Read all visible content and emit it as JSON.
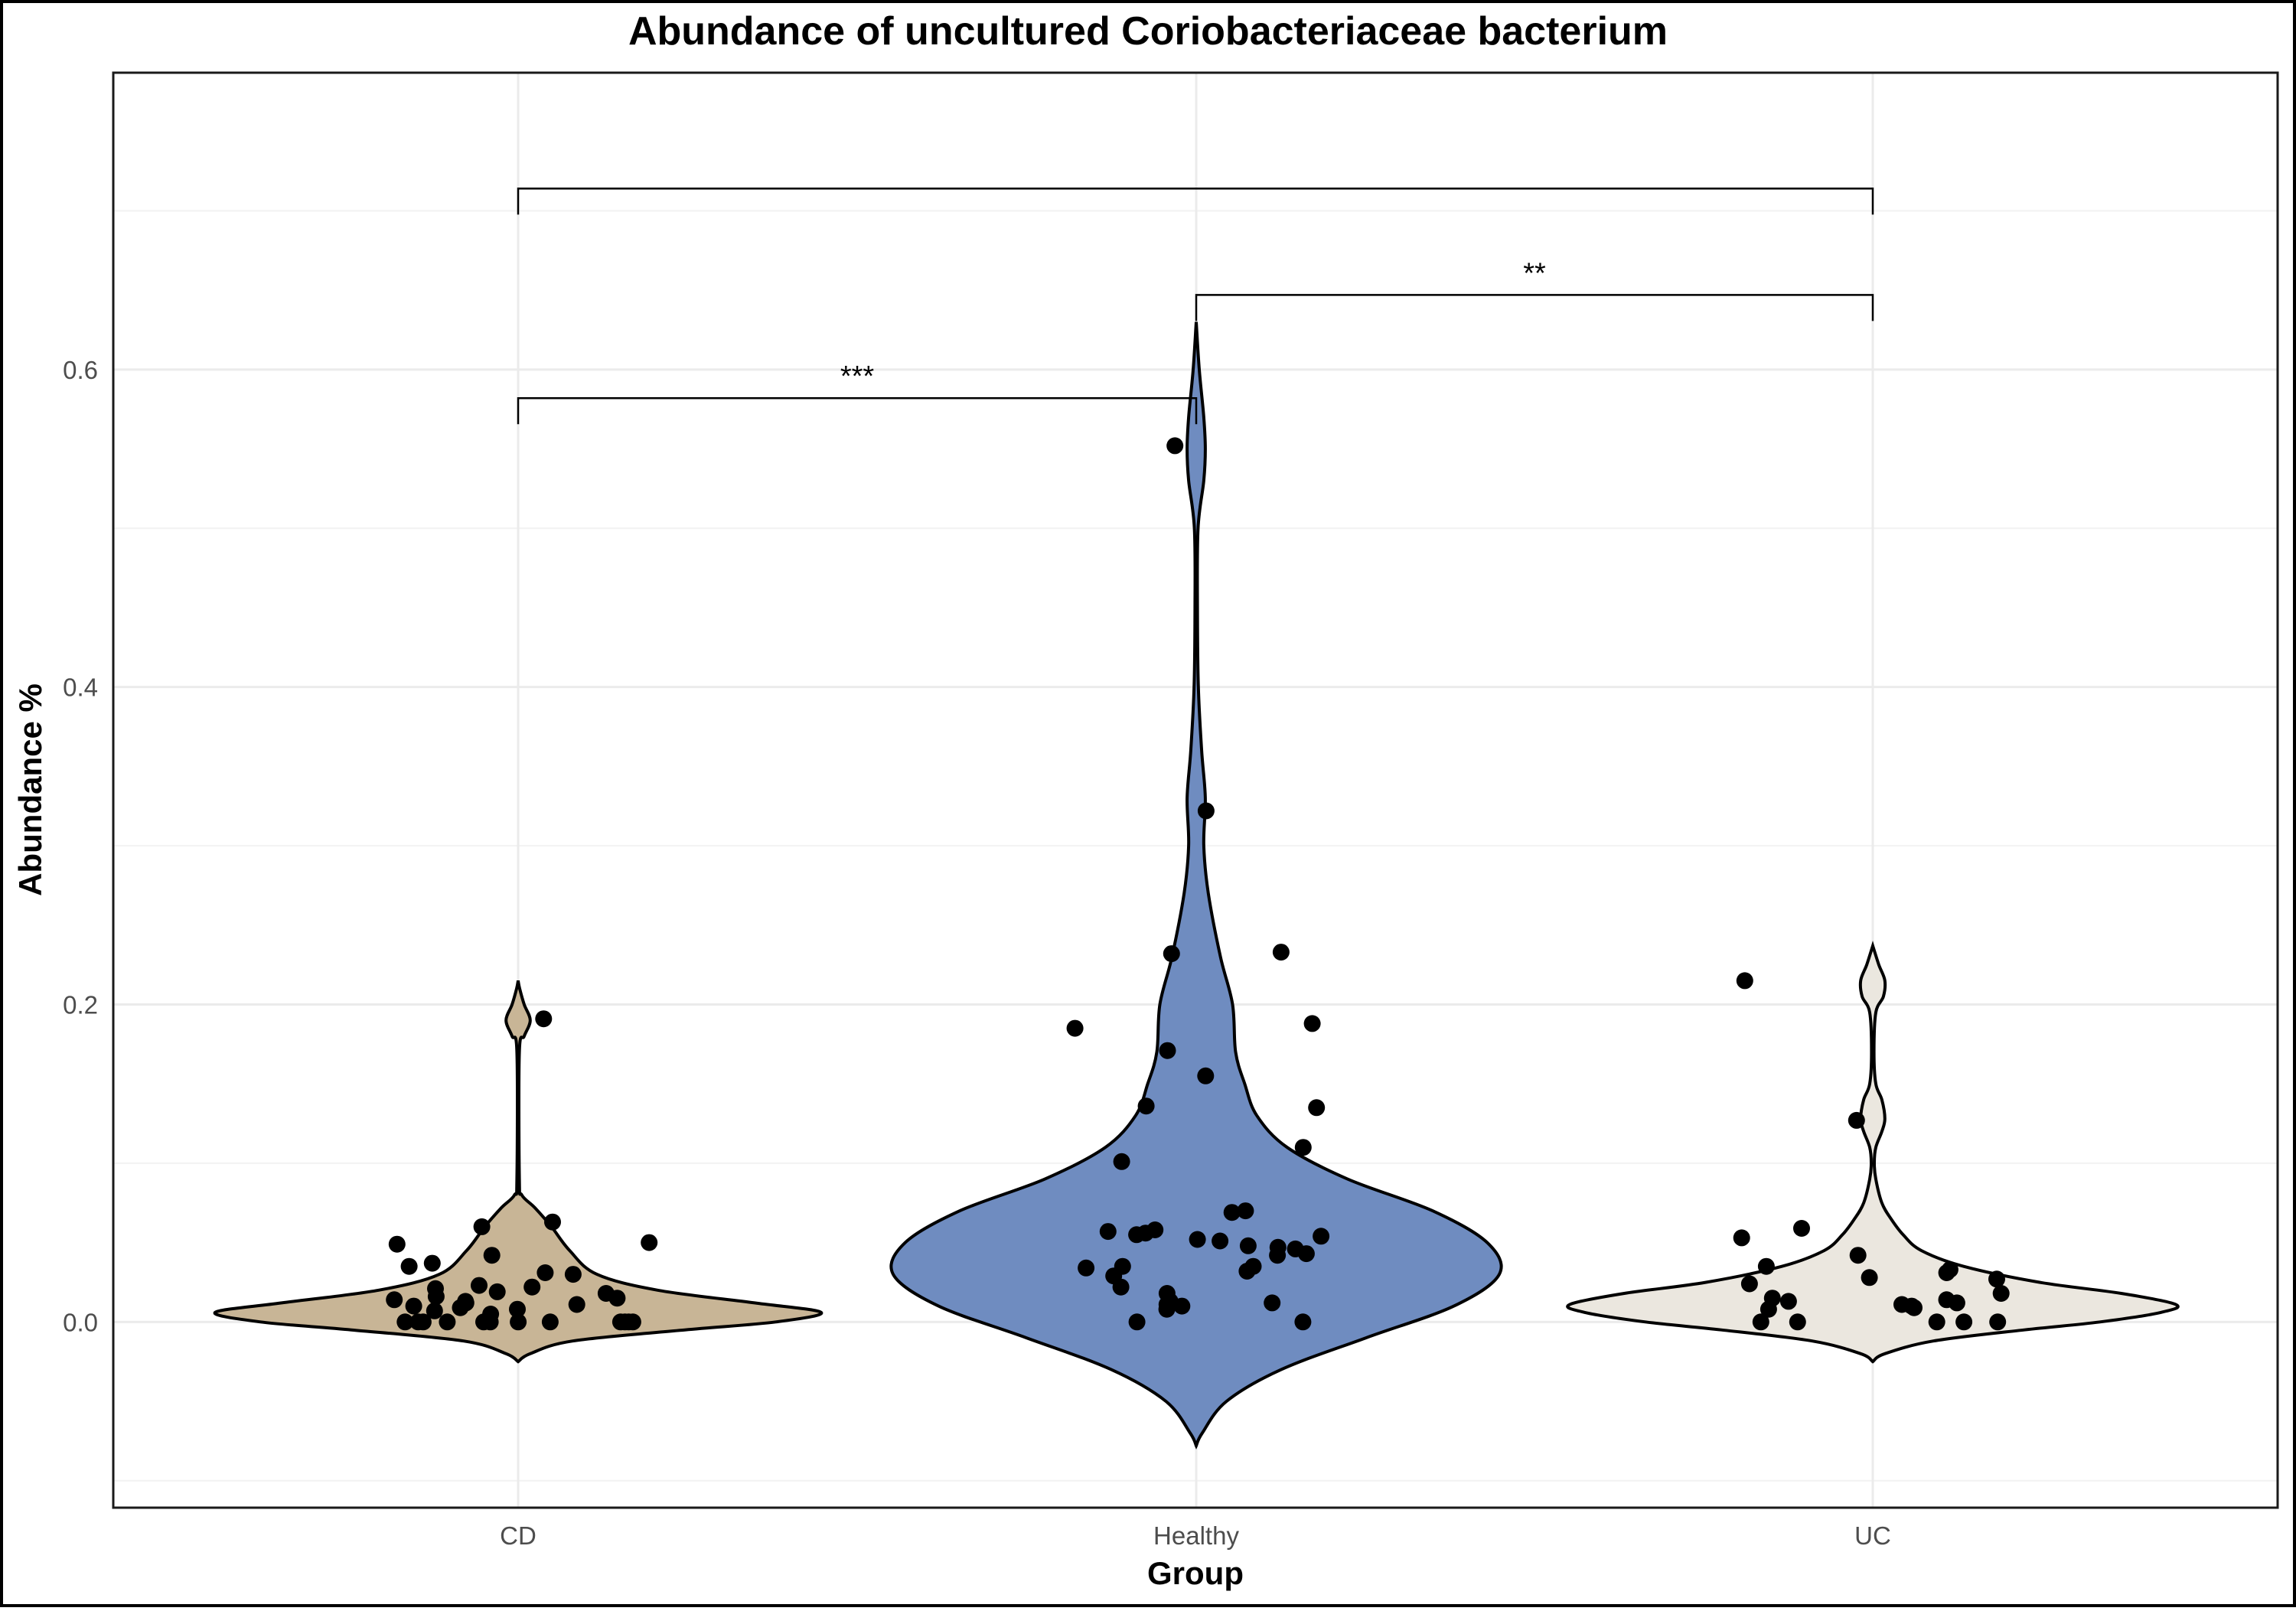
{
  "chart_data": {
    "type": "violin",
    "title": "Abundance of uncultured Coriobacteriaceae bacterium",
    "xlabel": "Group",
    "ylabel": "Abundance %",
    "ylim": [
      -0.117,
      0.787
    ],
    "yticks": [
      0.0,
      0.2,
      0.4,
      0.6
    ],
    "ytick_labels": [
      "0.0",
      "0.2",
      "0.4",
      "0.6"
    ],
    "grid": true,
    "legend": "none",
    "categories": [
      "CD",
      "Healthy",
      "UC"
    ],
    "colors": {
      "CD": "#c8b596",
      "Healthy": "#6f8cc0",
      "UC": "#ebe7df"
    },
    "groups": [
      {
        "name": "CD",
        "range": [
          -0.025,
          0.215
        ],
        "density_profile": [
          [
            -0.025,
            0.0
          ],
          [
            -0.02,
            0.04
          ],
          [
            -0.012,
            0.18
          ],
          [
            -0.005,
            0.55
          ],
          [
            0.0,
            0.85
          ],
          [
            0.006,
            1.0
          ],
          [
            0.012,
            0.78
          ],
          [
            0.02,
            0.46
          ],
          [
            0.03,
            0.26
          ],
          [
            0.045,
            0.17
          ],
          [
            0.06,
            0.11
          ],
          [
            0.072,
            0.055
          ],
          [
            0.08,
            0.012
          ],
          [
            0.09,
            0.004
          ],
          [
            0.17,
            0.004
          ],
          [
            0.18,
            0.02
          ],
          [
            0.19,
            0.04
          ],
          [
            0.2,
            0.02
          ],
          [
            0.21,
            0.005
          ],
          [
            0.215,
            0.0
          ]
        ],
        "points": [
          0.0,
          0.0,
          0.0,
          0.0,
          0.0,
          0.0,
          0.0,
          0.0,
          0.0,
          0.0,
          0.0,
          0.0,
          0.005,
          0.007,
          0.008,
          0.009,
          0.01,
          0.011,
          0.012,
          0.013,
          0.014,
          0.015,
          0.016,
          0.018,
          0.019,
          0.021,
          0.022,
          0.023,
          0.03,
          0.031,
          0.035,
          0.037,
          0.042,
          0.049,
          0.05,
          0.06,
          0.063,
          0.191
        ]
      },
      {
        "name": "Healthy",
        "range": [
          -0.078,
          0.63
        ],
        "density_profile": [
          [
            -0.078,
            0.0
          ],
          [
            -0.07,
            0.02
          ],
          [
            -0.05,
            0.1
          ],
          [
            -0.03,
            0.28
          ],
          [
            -0.01,
            0.56
          ],
          [
            0.01,
            0.85
          ],
          [
            0.03,
            1.0
          ],
          [
            0.05,
            0.96
          ],
          [
            0.07,
            0.78
          ],
          [
            0.09,
            0.5
          ],
          [
            0.11,
            0.3
          ],
          [
            0.13,
            0.2
          ],
          [
            0.15,
            0.16
          ],
          [
            0.17,
            0.13
          ],
          [
            0.2,
            0.12
          ],
          [
            0.23,
            0.08
          ],
          [
            0.27,
            0.04
          ],
          [
            0.3,
            0.025
          ],
          [
            0.33,
            0.03
          ],
          [
            0.36,
            0.018
          ],
          [
            0.4,
            0.007
          ],
          [
            0.45,
            0.004
          ],
          [
            0.5,
            0.006
          ],
          [
            0.53,
            0.025
          ],
          [
            0.55,
            0.03
          ],
          [
            0.57,
            0.025
          ],
          [
            0.6,
            0.01
          ],
          [
            0.63,
            0.0
          ]
        ],
        "points": [
          0.0,
          0.0,
          0.008,
          0.01,
          0.011,
          0.012,
          0.013,
          0.018,
          0.022,
          0.029,
          0.032,
          0.034,
          0.035,
          0.035,
          0.042,
          0.043,
          0.046,
          0.047,
          0.048,
          0.051,
          0.052,
          0.054,
          0.055,
          0.056,
          0.057,
          0.058,
          0.069,
          0.07,
          0.101,
          0.11,
          0.135,
          0.136,
          0.155,
          0.171,
          0.185,
          0.188,
          0.232,
          0.233,
          0.322,
          0.552
        ]
      },
      {
        "name": "UC",
        "range": [
          -0.025,
          0.237
        ],
        "density_profile": [
          [
            -0.025,
            0.0
          ],
          [
            -0.02,
            0.04
          ],
          [
            -0.012,
            0.2
          ],
          [
            -0.005,
            0.5
          ],
          [
            0.0,
            0.75
          ],
          [
            0.006,
            0.95
          ],
          [
            0.011,
            1.0
          ],
          [
            0.018,
            0.82
          ],
          [
            0.025,
            0.55
          ],
          [
            0.035,
            0.3
          ],
          [
            0.045,
            0.16
          ],
          [
            0.055,
            0.1
          ],
          [
            0.065,
            0.06
          ],
          [
            0.075,
            0.03
          ],
          [
            0.09,
            0.01
          ],
          [
            0.1,
            0.005
          ],
          [
            0.11,
            0.01
          ],
          [
            0.12,
            0.03
          ],
          [
            0.128,
            0.04
          ],
          [
            0.14,
            0.03
          ],
          [
            0.15,
            0.01
          ],
          [
            0.17,
            0.004
          ],
          [
            0.195,
            0.01
          ],
          [
            0.205,
            0.035
          ],
          [
            0.215,
            0.04
          ],
          [
            0.225,
            0.02
          ],
          [
            0.237,
            0.0
          ]
        ],
        "points": [
          0.0,
          0.0,
          0.0,
          0.0,
          0.0,
          0.008,
          0.009,
          0.01,
          0.011,
          0.012,
          0.013,
          0.014,
          0.015,
          0.018,
          0.024,
          0.027,
          0.028,
          0.031,
          0.033,
          0.035,
          0.042,
          0.053,
          0.059,
          0.127,
          0.215
        ]
      }
    ],
    "annotations": [
      {
        "from": "CD",
        "to": "Healthy",
        "label": "***",
        "y": 0.582
      },
      {
        "from": "Healthy",
        "to": "UC",
        "label": "**",
        "y": 0.647
      },
      {
        "from": "CD",
        "to": "UC",
        "label": "",
        "y": 0.714
      }
    ]
  }
}
